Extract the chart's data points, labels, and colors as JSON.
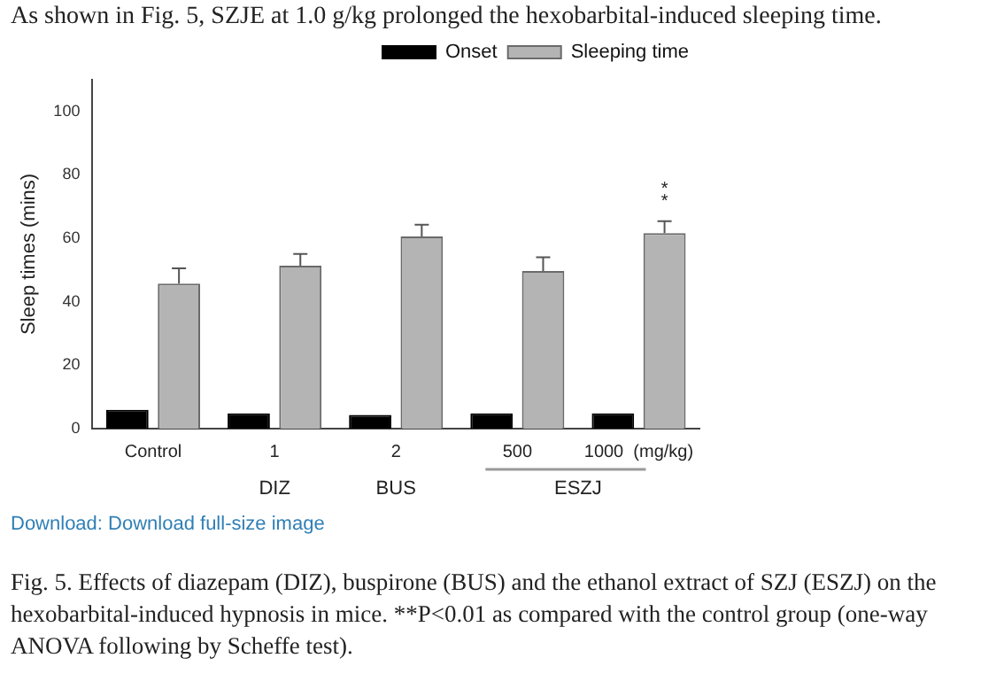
{
  "chart_data": {
    "type": "bar",
    "title": "As shown in Fig. 5, SZJE at 1.0 g/kg prolonged the hexobarbital-induced sleeping time.",
    "ylabel": "Sleep times (mins)",
    "categories": [
      "Control",
      "1",
      "2",
      "500",
      "1000  (mg/kg)"
    ],
    "series": [
      {
        "name": "Onset",
        "color": "#000000",
        "values": [
          5.9,
          4.8,
          4.3,
          4.8,
          4.8
        ]
      },
      {
        "name": "Sleeping time",
        "color": "#b4b4b4",
        "values": [
          45.7,
          51.4,
          60.6,
          49.7,
          61.6
        ],
        "errors": [
          4.8,
          3.7,
          3.7,
          4.3,
          3.8
        ]
      }
    ],
    "ylim": [
      0,
      110
    ],
    "yticks": [
      0,
      20,
      40,
      60,
      80,
      100
    ],
    "legend": "top right",
    "annotations": [
      "DIZ",
      "BUS",
      "ESZJ",
      "**",
      "Download: Download full-size image",
      "Fig. 5. Effects of diazepam (DIZ), buspirone (BUS) and the ethanol extract of SZJ (ESZJ) on the hexobarbital-induced hypnosis in mice. **P<0.01 as compared with the control group (one-way ANOVA following by Scheffe test)."
    ]
  }
}
